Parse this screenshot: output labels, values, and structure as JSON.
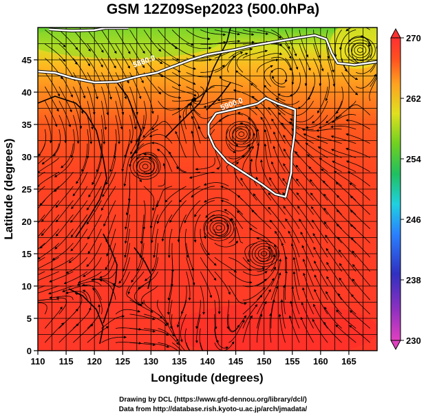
{
  "title": "GSM 12Z09Sep2023 (500.0hPa)",
  "chart_data": {
    "type": "map",
    "xlabel": "Longitude (degrees)",
    "ylabel": "Latitude  (degrees)",
    "xlim": [
      110,
      170
    ],
    "ylim": [
      0,
      50
    ],
    "xticks": [
      "110",
      "115",
      "120",
      "125",
      "130",
      "135",
      "140",
      "145",
      "150",
      "155",
      "160",
      "165"
    ],
    "yticks": [
      "0",
      "5",
      "10",
      "15",
      "20",
      "25",
      "30",
      "35",
      "40",
      "45"
    ],
    "grid": true,
    "colorbar": {
      "min": 230,
      "max": 270,
      "ticks": [
        "270",
        "262",
        "254",
        "246",
        "238",
        "230"
      ],
      "colors": [
        "#e040c0",
        "#4030c0",
        "#2a80ff",
        "#20d0e0",
        "#20c060",
        "#70d020",
        "#e0e020",
        "#ffa020",
        "#ff5020",
        "#ff3030"
      ]
    },
    "contours": [
      {
        "label": "5880.0",
        "points": [
          [
            110,
            43.2
          ],
          [
            113,
            43
          ],
          [
            116,
            42.2
          ],
          [
            120,
            41.5
          ],
          [
            124,
            41.6
          ],
          [
            128,
            42.5
          ],
          [
            131,
            43
          ],
          [
            134,
            44
          ],
          [
            137,
            45
          ],
          [
            140,
            45.8
          ],
          [
            145,
            46.6
          ],
          [
            148,
            47.2
          ],
          [
            152,
            47.8
          ],
          [
            156,
            48.4
          ],
          [
            159,
            48.8
          ],
          [
            161,
            48.2
          ],
          [
            162,
            46
          ],
          [
            163,
            44.5
          ],
          [
            166,
            44.2
          ],
          [
            170,
            44.7
          ]
        ]
      },
      {
        "label": "5880.0",
        "points": [
          [
            112,
            49.7
          ],
          [
            116,
            49.5
          ],
          [
            120,
            49.6
          ],
          [
            122,
            49.9
          ],
          [
            126,
            49.9
          ]
        ]
      },
      {
        "label": "5900.0",
        "points": [
          [
            140.2,
            35.1
          ],
          [
            141.5,
            36.7
          ],
          [
            144,
            37.2
          ],
          [
            146,
            37.6
          ],
          [
            148.8,
            38.2
          ],
          [
            150.3,
            39.1
          ],
          [
            152.5,
            38.2
          ],
          [
            155.5,
            37.3
          ],
          [
            155.4,
            33.5
          ],
          [
            154.9,
            30.5
          ],
          [
            154.8,
            27.5
          ],
          [
            153.8,
            23.8
          ],
          [
            152,
            24.2
          ],
          [
            149.5,
            25.8
          ],
          [
            146.5,
            27.5
          ],
          [
            143.5,
            29.2
          ],
          [
            141.2,
            31.5
          ],
          [
            140.2,
            33.5
          ],
          [
            140.2,
            35.1
          ]
        ]
      }
    ],
    "contour_labels": [
      {
        "text": "5880.0",
        "lon": 127,
        "lat": 43.8
      },
      {
        "text": "5900.0",
        "lon": 142.5,
        "lat": 37.2
      }
    ],
    "vortices": [
      {
        "lon": 146,
        "lat": 33.5
      },
      {
        "lon": 129,
        "lat": 28.5
      },
      {
        "lon": 142,
        "lat": 19
      },
      {
        "lon": 150,
        "lat": 15
      },
      {
        "lon": 167,
        "lat": 46.5
      }
    ],
    "wind_points": [
      {
        "lon": 112,
        "lat": 47,
        "u": 1,
        "v": 0
      },
      {
        "lon": 118,
        "lat": 46,
        "u": 1,
        "v": -0.3
      },
      {
        "lon": 125,
        "lat": 44,
        "u": 1,
        "v": -0.4
      },
      {
        "lon": 132,
        "lat": 43,
        "u": 1,
        "v": 0.2
      },
      {
        "lon": 140,
        "lat": 44,
        "u": 1,
        "v": 0.3
      },
      {
        "lon": 150,
        "lat": 46,
        "u": 1,
        "v": 0.1
      },
      {
        "lon": 158,
        "lat": 46,
        "u": 0.8,
        "v": -0.6
      },
      {
        "lon": 114,
        "lat": 38,
        "u": 1,
        "v": -0.6
      },
      {
        "lon": 120,
        "lat": 36,
        "u": 0.6,
        "v": -1
      },
      {
        "lon": 126,
        "lat": 35,
        "u": 1,
        "v": 0.2
      },
      {
        "lon": 134,
        "lat": 38,
        "u": 1,
        "v": 0.4
      },
      {
        "lon": 137,
        "lat": 34,
        "u": 0.4,
        "v": 1
      },
      {
        "lon": 160,
        "lat": 38,
        "u": -0.3,
        "v": -1
      },
      {
        "lon": 165,
        "lat": 30,
        "u": -1,
        "v": -0.3
      },
      {
        "lon": 113,
        "lat": 28,
        "u": -1,
        "v": 0.3
      },
      {
        "lon": 118,
        "lat": 22,
        "u": -1,
        "v": -0.2
      },
      {
        "lon": 124,
        "lat": 25,
        "u": -1,
        "v": 0.4
      },
      {
        "lon": 133,
        "lat": 22,
        "u": -1,
        "v": 0
      },
      {
        "lon": 158,
        "lat": 22,
        "u": -1,
        "v": 0.4
      },
      {
        "lon": 165,
        "lat": 18,
        "u": -1,
        "v": 0
      },
      {
        "lon": 114,
        "lat": 12,
        "u": -1,
        "v": 0.2
      },
      {
        "lon": 122,
        "lat": 8,
        "u": -0.6,
        "v": 0.8
      },
      {
        "lon": 130,
        "lat": 10,
        "u": -1,
        "v": 0.4
      },
      {
        "lon": 136,
        "lat": 6,
        "u": -1,
        "v": -0.2
      },
      {
        "lon": 144,
        "lat": 8,
        "u": -1,
        "v": 0
      },
      {
        "lon": 157,
        "lat": 7,
        "u": -1,
        "v": 0.3
      },
      {
        "lon": 165,
        "lat": 4,
        "u": -1,
        "v": 0
      },
      {
        "lon": 116,
        "lat": 3,
        "u": 0.5,
        "v": 1
      },
      {
        "lon": 128,
        "lat": 3,
        "u": 1,
        "v": 0.2
      },
      {
        "lon": 160,
        "lat": 12,
        "u": -1,
        "v": 0.2
      }
    ]
  },
  "credits": {
    "line1": "Drawing by DCL (https://www.gfd-dennou.org/library/dcl/)",
    "line2": "Data from http://database.rish.kyoto-u.ac.jp/arch/jmadata/"
  }
}
